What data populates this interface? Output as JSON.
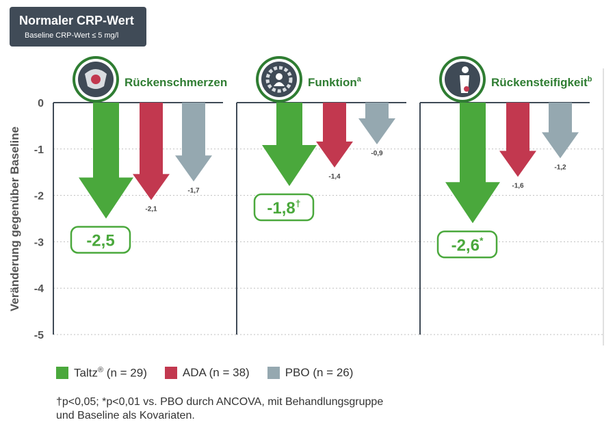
{
  "header": {
    "title": "Normaler CRP-Wert",
    "subtitle": "Baseline CRP-Wert ≤ 5 mg/l"
  },
  "colors": {
    "taltz": "#4aa83c",
    "ada": "#c2384f",
    "pbo": "#95a8b0",
    "panel": "#3f4a56",
    "grid": "#bfbfbf"
  },
  "chart_data": {
    "type": "bar",
    "ylabel": "Veränderung gegenüber Baseline",
    "ylim": [
      -5,
      0
    ],
    "yticks": [
      "0",
      "-1",
      "-2",
      "-3",
      "-4",
      "-5"
    ],
    "grid": true,
    "legend_position": "bottom",
    "series": [
      {
        "name": "Taltz® (n = 29)",
        "color": "#4aa83c"
      },
      {
        "name": "ADA (n = 38)",
        "color": "#c2384f"
      },
      {
        "name": "PBO (n = 26)",
        "color": "#95a8b0"
      }
    ],
    "panels": [
      {
        "title": "Rückenschmerzen",
        "sup": "",
        "icon": "pelvis-icon",
        "values": [
          -2.5,
          -2.1,
          -1.7
        ],
        "labels": [
          "-2,5",
          "-2,1",
          "-1,7"
        ],
        "taltz_mark": ""
      },
      {
        "title": "Funktion",
        "sup": "a",
        "icon": "gear-person-icon",
        "values": [
          -1.8,
          -1.4,
          -0.9
        ],
        "labels": [
          "-1,8",
          "-1,4",
          "-0,9"
        ],
        "taltz_mark": "†"
      },
      {
        "title": "Rückensteifigkeit",
        "sup": "b",
        "icon": "back-stiffness-icon",
        "values": [
          -2.6,
          -1.6,
          -1.2
        ],
        "labels": [
          "-2,6",
          "-1,6",
          "-1,2"
        ],
        "taltz_mark": "*"
      }
    ]
  },
  "legend": [
    {
      "label": "Taltz",
      "sup": "®",
      "suffix": " (n = 29)",
      "color": "#4aa83c"
    },
    {
      "label": "ADA",
      "sup": "",
      "suffix": " (n = 38)",
      "color": "#c2384f"
    },
    {
      "label": "PBO",
      "sup": "",
      "suffix": " (n = 26)",
      "color": "#95a8b0"
    }
  ],
  "footnote": {
    "line1": "†p<0,05; *p<0,01 vs. PBO durch ANCOVA, mit Behandlungsgruppe",
    "line2": "und Baseline als Kovariaten."
  }
}
